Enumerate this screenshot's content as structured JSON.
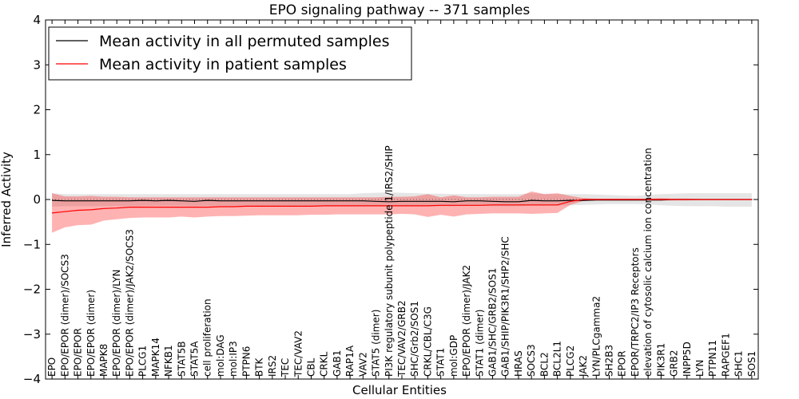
{
  "chart_data": {
    "type": "line",
    "title": "EPO signaling pathway -- 371 samples",
    "xlabel": "Cellular Entities",
    "ylabel": "Inferred Activity",
    "ylim": [
      -4,
      4
    ],
    "yticks": [
      -4,
      -3,
      -2,
      -1,
      0,
      1,
      2,
      3,
      4
    ],
    "ytick_labels": [
      "−4",
      "−3",
      "−2",
      "−1",
      "0",
      "1",
      "2",
      "3",
      "4"
    ],
    "grid": false,
    "legend_position": "top-left",
    "categories": [
      "EPO",
      "EPO/EPOR (dimer)/SOCS3",
      "EPO/EPOR",
      "EPO/EPOR (dimer)",
      "MAPK8",
      "EPO/EPOR (dimer)/LYN",
      "EPO/EPOR (dimer)/JAK2/SOCS3",
      "PLCG1",
      "MAPK14",
      "NFKB1",
      "STAT5B",
      "STAT5A",
      "cell proliferation",
      "mol:DAG",
      "mol:IP3",
      "PTPN6",
      "BTK",
      "IRS2",
      "TEC",
      "TEC/VAV2",
      "CBL",
      "CRKL",
      "GAB1",
      "RAP1A",
      "VAV2",
      "STAT5 (dimer)",
      "PI3K regulatory subunit polypeptide 1/IRS2/SHIP",
      "TEC/VAV2/GRB2",
      "SHC/Grb2/SOS1",
      "CRKL/CBL/C3G",
      "STAT1",
      "mol:GDP",
      "EPO/EPOR (dimer)/JAK2",
      "STAT1 (dimer)",
      "GAB1/SHC/GRB2/SOS1",
      "GAB1/SHIP/PIK3R1/SHP2/SHC",
      "HRAS",
      "SOCS3",
      "BCL2",
      "BCL2L1",
      "PLCG2",
      "JAK2",
      "LYN/PLCgamma2",
      "SH2B3",
      "EPOR",
      "EPOR/TRPC2/IP3 Receptors",
      "elevation of cytosolic calcium ion concentration",
      "PIK3R1",
      "GRB2",
      "INPP5D",
      "LYN",
      "PTPN11",
      "RAPGEF1",
      "SHC1",
      "SOS1"
    ],
    "series": [
      {
        "name": "Mean activity in all permuted samples",
        "color": "#000000",
        "values": [
          -0.02,
          -0.03,
          -0.03,
          -0.03,
          -0.03,
          -0.03,
          -0.03,
          -0.02,
          -0.03,
          -0.02,
          -0.03,
          -0.04,
          -0.02,
          -0.03,
          -0.03,
          -0.03,
          -0.03,
          -0.03,
          -0.03,
          -0.03,
          -0.03,
          -0.03,
          -0.03,
          -0.03,
          -0.03,
          -0.04,
          -0.05,
          -0.04,
          -0.04,
          -0.04,
          -0.04,
          -0.05,
          -0.03,
          -0.03,
          -0.04,
          -0.05,
          -0.05,
          -0.02,
          -0.03,
          -0.03,
          -0.02,
          -0.02,
          -0.01,
          -0.01,
          -0.01,
          -0.01,
          -0.01,
          -0.01,
          0.0,
          0.0,
          0.0,
          0.0,
          0.0,
          0.0,
          0.0
        ],
        "band_lower": [
          -0.16,
          -0.15,
          -0.15,
          -0.15,
          -0.15,
          -0.15,
          -0.15,
          -0.15,
          -0.14,
          -0.14,
          -0.14,
          -0.15,
          -0.14,
          -0.14,
          -0.14,
          -0.14,
          -0.14,
          -0.14,
          -0.14,
          -0.14,
          -0.14,
          -0.14,
          -0.14,
          -0.14,
          -0.14,
          -0.14,
          -0.15,
          -0.15,
          -0.15,
          -0.15,
          -0.15,
          -0.15,
          -0.14,
          -0.14,
          -0.15,
          -0.15,
          -0.15,
          -0.14,
          -0.14,
          -0.14,
          -0.13,
          -0.12,
          -0.11,
          -0.1,
          -0.1,
          -0.1,
          -0.11,
          -0.13,
          -0.14,
          -0.15,
          -0.15,
          -0.15,
          -0.16,
          -0.16,
          -0.16
        ],
        "band_upper": [
          0.14,
          0.12,
          0.12,
          0.12,
          0.12,
          0.12,
          0.12,
          0.12,
          0.12,
          0.12,
          0.12,
          0.12,
          0.12,
          0.12,
          0.12,
          0.12,
          0.12,
          0.12,
          0.12,
          0.12,
          0.12,
          0.12,
          0.12,
          0.12,
          0.14,
          0.15,
          0.16,
          0.15,
          0.14,
          0.13,
          0.13,
          0.12,
          0.12,
          0.12,
          0.12,
          0.12,
          0.12,
          0.14,
          0.12,
          0.12,
          0.12,
          0.12,
          0.11,
          0.1,
          0.09,
          0.08,
          0.1,
          0.12,
          0.13,
          0.14,
          0.14,
          0.14,
          0.14,
          0.14,
          0.14
        ]
      },
      {
        "name": "Mean activity in patient samples",
        "color": "#ff0000",
        "values": [
          -0.3,
          -0.27,
          -0.24,
          -0.23,
          -0.2,
          -0.19,
          -0.17,
          -0.17,
          -0.17,
          -0.17,
          -0.17,
          -0.17,
          -0.17,
          -0.16,
          -0.16,
          -0.15,
          -0.15,
          -0.15,
          -0.15,
          -0.15,
          -0.15,
          -0.14,
          -0.14,
          -0.14,
          -0.14,
          -0.14,
          -0.14,
          -0.14,
          -0.14,
          -0.14,
          -0.13,
          -0.13,
          -0.13,
          -0.13,
          -0.12,
          -0.12,
          -0.12,
          -0.12,
          -0.12,
          -0.12,
          -0.04,
          0.0,
          0.0,
          0.0,
          0.0,
          0.0,
          0.0,
          0.0,
          0.0,
          0.0,
          0.0,
          0.0,
          0.0,
          0.0,
          0.0
        ],
        "band_lower": [
          -0.74,
          -0.62,
          -0.57,
          -0.56,
          -0.47,
          -0.44,
          -0.41,
          -0.4,
          -0.4,
          -0.4,
          -0.38,
          -0.4,
          -0.38,
          -0.37,
          -0.37,
          -0.36,
          -0.35,
          -0.35,
          -0.35,
          -0.35,
          -0.34,
          -0.34,
          -0.33,
          -0.33,
          -0.33,
          -0.33,
          -0.33,
          -0.32,
          -0.33,
          -0.39,
          -0.34,
          -0.38,
          -0.33,
          -0.32,
          -0.31,
          -0.31,
          -0.31,
          -0.32,
          -0.31,
          -0.3,
          -0.12,
          -0.03,
          -0.02,
          -0.02,
          -0.02,
          -0.02,
          -0.02,
          -0.02,
          -0.02,
          -0.02,
          -0.01,
          -0.01,
          -0.01,
          -0.01,
          -0.01
        ],
        "band_upper": [
          0.14,
          0.07,
          0.07,
          0.08,
          0.06,
          0.06,
          0.05,
          0.05,
          0.05,
          0.05,
          0.05,
          0.05,
          0.05,
          0.05,
          0.05,
          0.05,
          0.05,
          0.05,
          0.05,
          0.05,
          0.05,
          0.05,
          0.05,
          0.05,
          0.05,
          0.05,
          0.06,
          0.06,
          0.07,
          0.12,
          0.05,
          0.09,
          0.05,
          0.05,
          0.06,
          0.06,
          0.06,
          0.18,
          0.12,
          0.14,
          0.08,
          0.03,
          0.02,
          0.02,
          0.02,
          0.02,
          0.02,
          0.03,
          0.02,
          0.02,
          0.01,
          0.01,
          0.01,
          0.01,
          0.01
        ]
      }
    ]
  }
}
